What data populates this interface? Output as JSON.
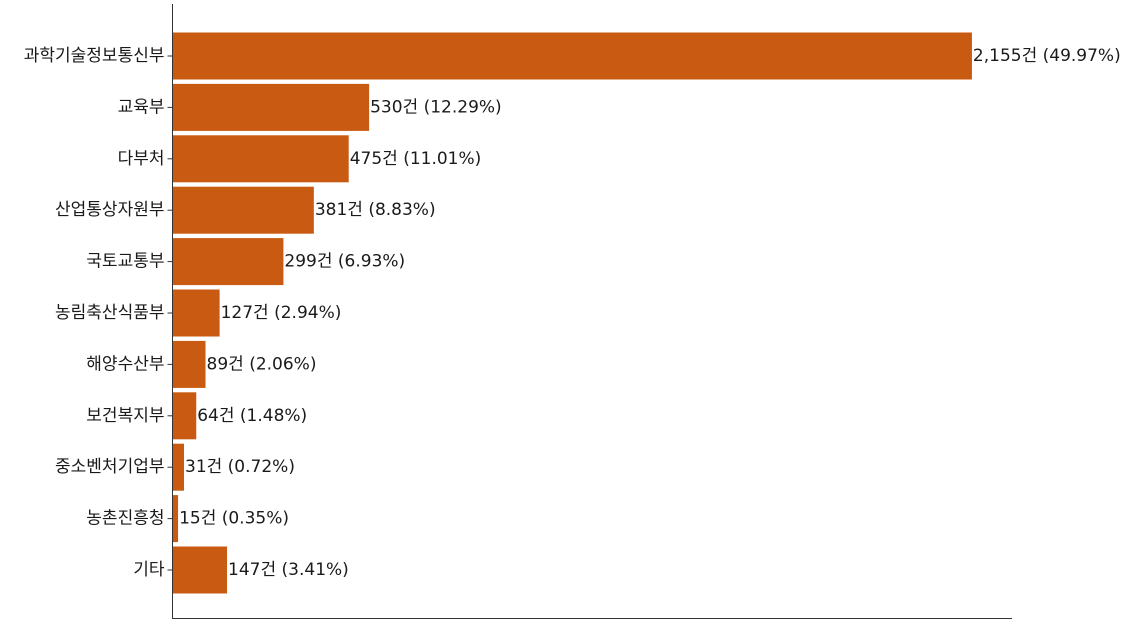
{
  "chart_data": {
    "type": "bar",
    "orientation": "horizontal",
    "title": "",
    "xlabel": "",
    "ylabel": "",
    "categories": [
      "과학기술정보통신부",
      "교육부",
      "다부처",
      "산업통상자원부",
      "국토교통부",
      "농림축산식품부",
      "해양수산부",
      "보건복지부",
      "중소벤처기업부",
      "농촌진흥청",
      "기타"
    ],
    "values": [
      2155,
      530,
      475,
      381,
      299,
      127,
      89,
      64,
      31,
      15,
      147
    ],
    "data_labels": [
      "2,155건 (49.97%)",
      "530건 (12.29%)",
      "475건 (11.01%)",
      "381건 (8.83%)",
      "299건 (6.93%)",
      "127건 (2.94%)",
      "89건 (2.06%)",
      "64건 (1.48%)",
      "31건 (0.72%)",
      "15건 (0.35%)",
      "147건 (3.41%)"
    ],
    "xlim": [
      0,
      2263
    ],
    "grid": false,
    "x_ticks_visible": false,
    "bar_color": "#c95a11",
    "axis_color": "#333333"
  }
}
